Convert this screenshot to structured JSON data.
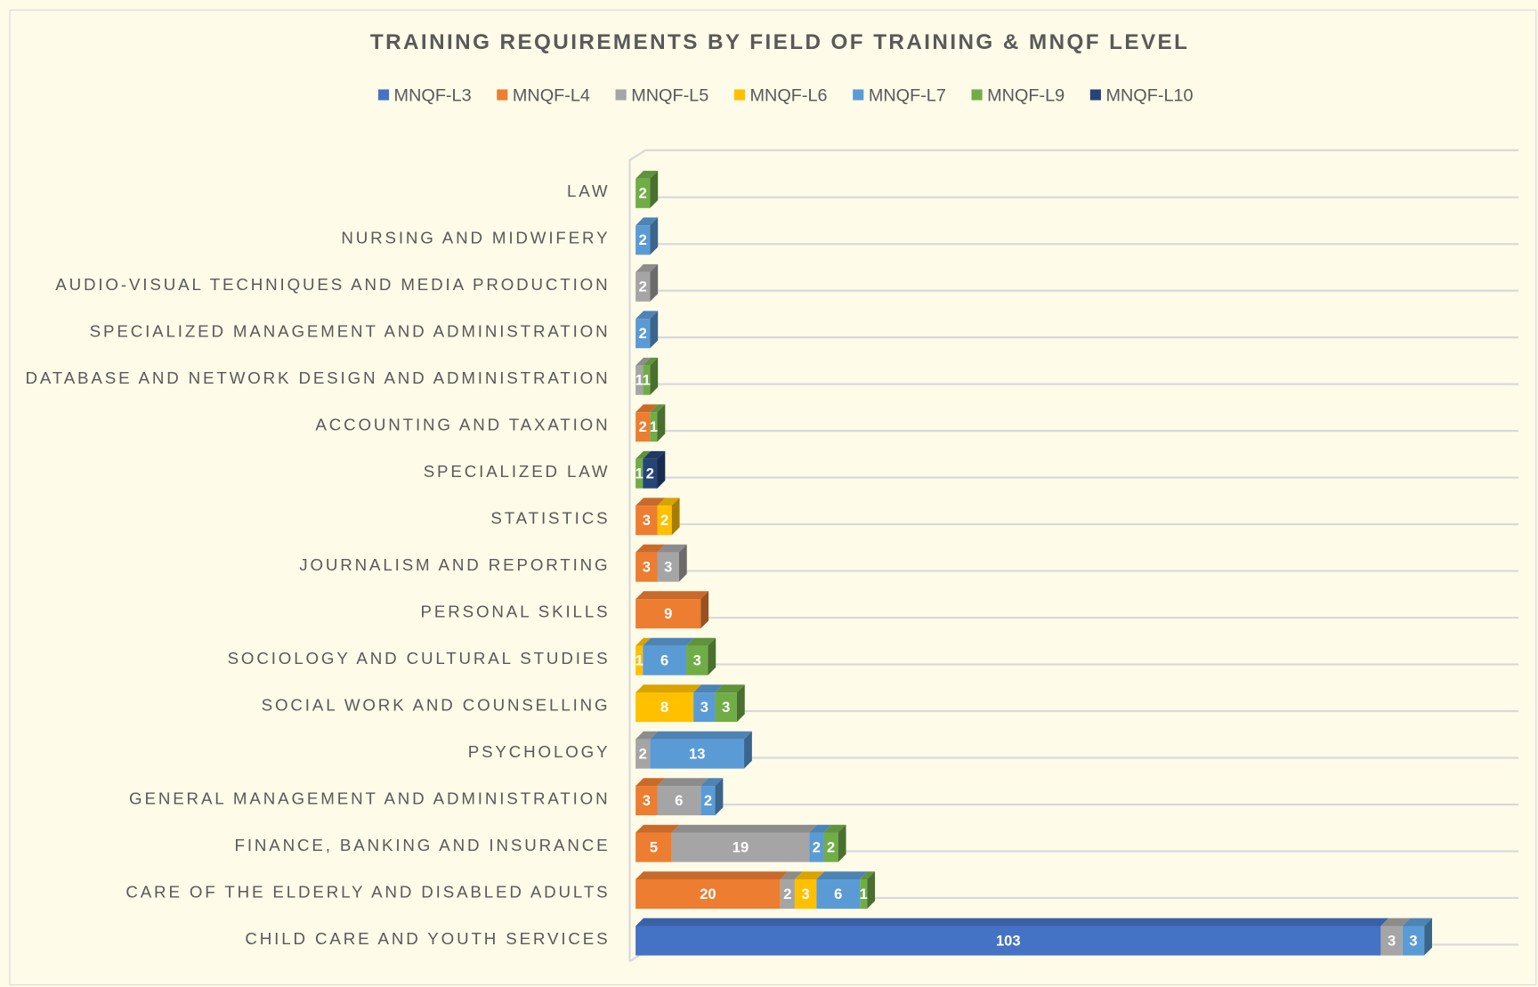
{
  "chart_data": {
    "type": "bar",
    "orientation": "horizontal",
    "stacked": true,
    "title": "TRAINING REQUIREMENTS BY FIELD OF TRAINING & MNQF LEVEL",
    "legend": "top",
    "grid": true,
    "categories": [
      "LAW",
      "NURSING AND MIDWIFERY",
      "AUDIO-VISUAL TECHNIQUES AND MEDIA PRODUCTION",
      "SPECIALIZED MANAGEMENT AND ADMINISTRATION",
      "DATABASE AND NETWORK DESIGN AND ADMINISTRATION",
      "ACCOUNTING AND TAXATION",
      "SPECIALIZED LAW",
      "STATISTICS",
      "JOURNALISM AND REPORTING",
      "PERSONAL SKILLS",
      "SOCIOLOGY AND CULTURAL STUDIES",
      "SOCIAL WORK AND COUNSELLING",
      "PSYCHOLOGY",
      "GENERAL MANAGEMENT AND ADMINISTRATION",
      "FINANCE, BANKING AND INSURANCE",
      "CARE OF THE ELDERLY AND DISABLED ADULTS",
      "CHILD CARE AND YOUTH SERVICES"
    ],
    "series": [
      {
        "name": "MNQF-L3",
        "color": "#4472c4",
        "values": [
          null,
          null,
          null,
          null,
          null,
          null,
          null,
          null,
          null,
          null,
          null,
          null,
          null,
          null,
          null,
          null,
          103
        ]
      },
      {
        "name": "MNQF-L4",
        "color": "#ed7d31",
        "values": [
          null,
          null,
          null,
          null,
          null,
          2,
          null,
          3,
          3,
          9,
          null,
          null,
          null,
          3,
          5,
          20,
          null
        ]
      },
      {
        "name": "MNQF-L5",
        "color": "#a5a5a5",
        "values": [
          null,
          null,
          2,
          null,
          1,
          null,
          null,
          null,
          3,
          null,
          null,
          null,
          2,
          6,
          19,
          2,
          3
        ]
      },
      {
        "name": "MNQF-L6",
        "color": "#ffc000",
        "values": [
          null,
          null,
          null,
          null,
          null,
          null,
          null,
          2,
          null,
          null,
          1,
          8,
          null,
          null,
          null,
          3,
          null
        ]
      },
      {
        "name": "MNQF-L7",
        "color": "#5b9bd5",
        "values": [
          null,
          2,
          null,
          2,
          null,
          null,
          null,
          null,
          null,
          null,
          6,
          3,
          13,
          2,
          2,
          6,
          3
        ]
      },
      {
        "name": "MNQF-L9",
        "color": "#70ad47",
        "values": [
          2,
          null,
          null,
          null,
          1,
          1,
          1,
          null,
          null,
          null,
          3,
          3,
          null,
          null,
          2,
          1,
          null
        ]
      },
      {
        "name": "MNQF-L10",
        "color": "#264478",
        "values": [
          null,
          null,
          null,
          null,
          null,
          null,
          2,
          null,
          null,
          null,
          null,
          null,
          null,
          null,
          null,
          null,
          null
        ]
      }
    ]
  }
}
